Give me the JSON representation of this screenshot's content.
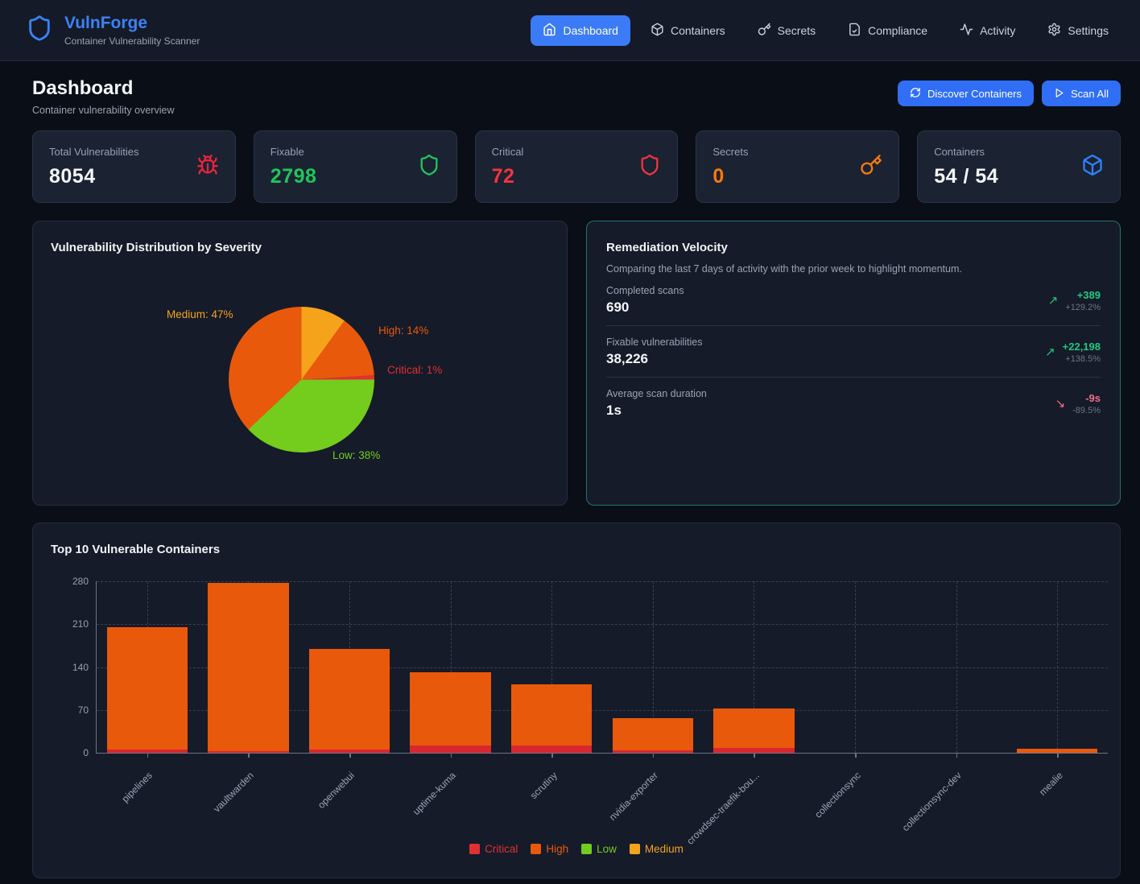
{
  "brand": {
    "name": "VulnForge",
    "tagline": "Container Vulnerability Scanner"
  },
  "nav": {
    "items": [
      {
        "label": "Dashboard",
        "icon": "home-icon",
        "active": true
      },
      {
        "label": "Containers",
        "icon": "package-icon",
        "active": false
      },
      {
        "label": "Secrets",
        "icon": "key-icon",
        "active": false
      },
      {
        "label": "Compliance",
        "icon": "file-check-icon",
        "active": false
      },
      {
        "label": "Activity",
        "icon": "activity-icon",
        "active": false
      },
      {
        "label": "Settings",
        "icon": "gear-icon",
        "active": false
      }
    ]
  },
  "page": {
    "title": "Dashboard",
    "subtitle": "Container vulnerability overview",
    "discover_label": "Discover Containers",
    "scan_label": "Scan All"
  },
  "stats": [
    {
      "label": "Total Vulnerabilities",
      "value": "8054",
      "icon": "bug-icon",
      "value_color": "#f3f5f8",
      "icon_color": "#e8243c"
    },
    {
      "label": "Fixable",
      "value": "2798",
      "icon": "shield-icon",
      "value_color": "#1fc55b",
      "icon_color": "#1fc55b"
    },
    {
      "label": "Critical",
      "value": "72",
      "icon": "shield-icon",
      "value_color": "#f2333f",
      "icon_color": "#f2333f"
    },
    {
      "label": "Secrets",
      "value": "0",
      "icon": "key-icon",
      "value_color": "#f7790b",
      "icon_color": "#f7790b"
    },
    {
      "label": "Containers",
      "value": "54 / 54",
      "icon": "package-icon",
      "value_color": "#f3f5f8",
      "icon_color": "#2f81f7"
    }
  ],
  "velocity": {
    "title": "Remediation Velocity",
    "subtitle": "Comparing the last 7 days of activity with the prior week to highlight momentum.",
    "rows": [
      {
        "label": "Completed scans",
        "value": "690",
        "delta": "+389",
        "delta_pct": "+129.2%",
        "direction": "up"
      },
      {
        "label": "Fixable vulnerabilities",
        "value": "38,226",
        "delta": "+22,198",
        "delta_pct": "+138.5%",
        "direction": "up"
      },
      {
        "label": "Average scan duration",
        "value": "1s",
        "delta": "-9s",
        "delta_pct": "-89.5%",
        "direction": "down"
      }
    ]
  },
  "chart_data": [
    {
      "type": "pie",
      "title": "Vulnerability Distribution by Severity",
      "start_angle_deg": 226.8,
      "slices": [
        {
          "label": "Medium",
          "pct": 47,
          "color": "#f5a31b",
          "display": "Medium: 47%"
        },
        {
          "label": "High",
          "pct": 14,
          "color": "#e8590c",
          "display": "High: 14%"
        },
        {
          "label": "Critical",
          "pct": 1,
          "color": "#e03131",
          "display": "Critical: 1%"
        },
        {
          "label": "Low",
          "pct": 38,
          "color": "#74cc1d",
          "display": "Low: 38%"
        }
      ]
    },
    {
      "type": "bar",
      "title": "Top 10 Vulnerable Containers",
      "categories": [
        "pipelines",
        "vaultwarden",
        "openwebui",
        "uptime-kuma",
        "scrutiny",
        "nvidia-exporter",
        "crowdsec-traefik-bou...",
        "collectionsync",
        "collectionsync-dev",
        "mealie"
      ],
      "series": [
        {
          "name": "Critical",
          "color": "#d9262f",
          "values": [
            5,
            2,
            5,
            12,
            12,
            4,
            8,
            0,
            0,
            0
          ]
        },
        {
          "name": "High",
          "color": "#e8590c",
          "values": [
            200,
            275,
            165,
            120,
            100,
            53,
            64,
            0,
            0,
            6
          ]
        }
      ],
      "legend": [
        {
          "label": "Critical",
          "color": "#e03131"
        },
        {
          "label": "High",
          "color": "#e8590c"
        },
        {
          "label": "Low",
          "color": "#74cc1d"
        },
        {
          "label": "Medium",
          "color": "#f5a31b"
        }
      ],
      "ylabel": "",
      "xlabel": "",
      "yticks": [
        0,
        70,
        140,
        210,
        280
      ],
      "ylim": [
        0,
        280
      ],
      "grid": true,
      "legend_position": "bottom"
    }
  ]
}
